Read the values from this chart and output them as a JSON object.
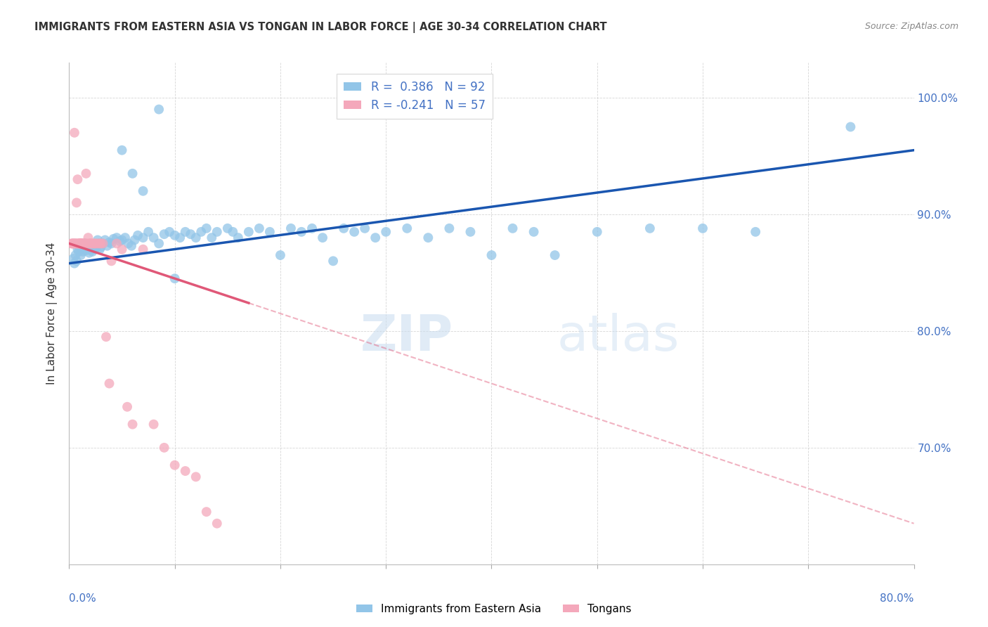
{
  "title": "IMMIGRANTS FROM EASTERN ASIA VS TONGAN IN LABOR FORCE | AGE 30-34 CORRELATION CHART",
  "source": "Source: ZipAtlas.com",
  "ylabel_label": "In Labor Force | Age 30-34",
  "x_min": 0.0,
  "x_max": 80.0,
  "y_min": 60.0,
  "y_max": 103.0,
  "y_ticks": [
    70.0,
    80.0,
    90.0,
    100.0
  ],
  "blue_R": 0.386,
  "blue_N": 92,
  "pink_R": -0.241,
  "pink_N": 57,
  "blue_color": "#92C5E8",
  "pink_color": "#F4A8BB",
  "blue_line_color": "#1A56B0",
  "pink_line_color": "#E05878",
  "blue_line_x0": 0.0,
  "blue_line_y0": 85.8,
  "blue_line_x1": 80.0,
  "blue_line_y1": 95.5,
  "pink_line_x0": 0.0,
  "pink_line_y0": 87.5,
  "pink_line_x1": 80.0,
  "pink_line_y1": 63.5,
  "pink_solid_end": 17.0,
  "watermark_zip": "ZIP",
  "watermark_atlas": "atlas",
  "legend_blue_label": "Immigrants from Eastern Asia",
  "legend_pink_label": "Tongans",
  "blue_scatter_x": [
    0.4,
    0.5,
    0.6,
    0.7,
    0.8,
    0.9,
    1.0,
    1.1,
    1.2,
    1.3,
    1.4,
    1.5,
    1.6,
    1.7,
    1.8,
    1.9,
    2.0,
    2.1,
    2.2,
    2.3,
    2.4,
    2.5,
    2.6,
    2.7,
    2.8,
    2.9,
    3.0,
    3.2,
    3.4,
    3.6,
    3.8,
    4.0,
    4.2,
    4.5,
    4.8,
    5.0,
    5.3,
    5.6,
    5.9,
    6.2,
    6.5,
    7.0,
    7.5,
    8.0,
    8.5,
    9.0,
    9.5,
    10.0,
    10.5,
    11.0,
    11.5,
    12.0,
    12.5,
    13.0,
    13.5,
    14.0,
    15.0,
    15.5,
    16.0,
    17.0,
    18.0,
    19.0,
    20.0,
    21.0,
    22.0,
    23.0,
    24.0,
    25.0,
    26.0,
    27.0,
    28.0,
    29.0,
    30.0,
    32.0,
    34.0,
    36.0,
    38.0,
    40.0,
    42.0,
    44.0,
    46.0,
    50.0,
    55.0,
    60.0,
    65.0,
    5.0,
    6.0,
    7.0,
    8.5,
    10.0,
    74.0
  ],
  "blue_scatter_y": [
    86.2,
    85.8,
    86.5,
    86.0,
    87.0,
    86.8,
    87.2,
    86.5,
    87.0,
    86.8,
    87.3,
    87.5,
    86.9,
    87.1,
    87.3,
    86.7,
    87.5,
    87.0,
    86.8,
    87.2,
    87.0,
    87.4,
    87.2,
    87.8,
    87.5,
    87.0,
    87.2,
    87.5,
    87.8,
    87.3,
    87.6,
    87.5,
    87.9,
    88.0,
    87.7,
    87.8,
    88.0,
    87.5,
    87.3,
    87.8,
    88.2,
    88.0,
    88.5,
    88.0,
    87.5,
    88.3,
    88.5,
    88.2,
    88.0,
    88.5,
    88.3,
    88.0,
    88.5,
    88.8,
    88.0,
    88.5,
    88.8,
    88.5,
    88.0,
    88.5,
    88.8,
    88.5,
    86.5,
    88.8,
    88.5,
    88.8,
    88.0,
    86.0,
    88.8,
    88.5,
    88.8,
    88.0,
    88.5,
    88.8,
    88.0,
    88.8,
    88.5,
    86.5,
    88.8,
    88.5,
    86.5,
    88.5,
    88.8,
    88.8,
    88.5,
    95.5,
    93.5,
    92.0,
    99.0,
    84.5,
    97.5
  ],
  "pink_scatter_x": [
    0.2,
    0.3,
    0.35,
    0.4,
    0.45,
    0.5,
    0.55,
    0.6,
    0.65,
    0.7,
    0.75,
    0.8,
    0.85,
    0.9,
    0.95,
    1.0,
    1.05,
    1.1,
    1.15,
    1.2,
    1.3,
    1.4,
    1.5,
    1.6,
    1.7,
    1.8,
    1.9,
    2.0,
    2.1,
    2.2,
    2.3,
    2.4,
    2.5,
    2.7,
    2.9,
    3.0,
    3.2,
    3.5,
    3.8,
    4.0,
    4.5,
    5.0,
    5.5,
    6.0,
    7.0,
    8.0,
    9.0,
    10.0,
    11.0,
    12.0,
    13.0,
    14.0,
    1.0,
    1.1,
    1.2,
    1.3,
    1.5
  ],
  "pink_scatter_y": [
    87.5,
    87.5,
    87.5,
    87.5,
    87.5,
    97.0,
    87.5,
    87.5,
    87.5,
    91.0,
    87.5,
    93.0,
    87.5,
    87.5,
    87.5,
    87.5,
    87.5,
    87.5,
    87.5,
    87.5,
    87.5,
    87.5,
    87.5,
    93.5,
    87.5,
    88.0,
    87.5,
    87.5,
    87.5,
    87.5,
    87.5,
    87.5,
    87.5,
    87.5,
    87.5,
    87.5,
    87.5,
    79.5,
    75.5,
    86.0,
    87.5,
    87.0,
    73.5,
    72.0,
    87.0,
    72.0,
    70.0,
    68.5,
    68.0,
    67.5,
    64.5,
    63.5,
    87.5,
    87.5,
    87.5,
    87.5,
    87.5
  ]
}
